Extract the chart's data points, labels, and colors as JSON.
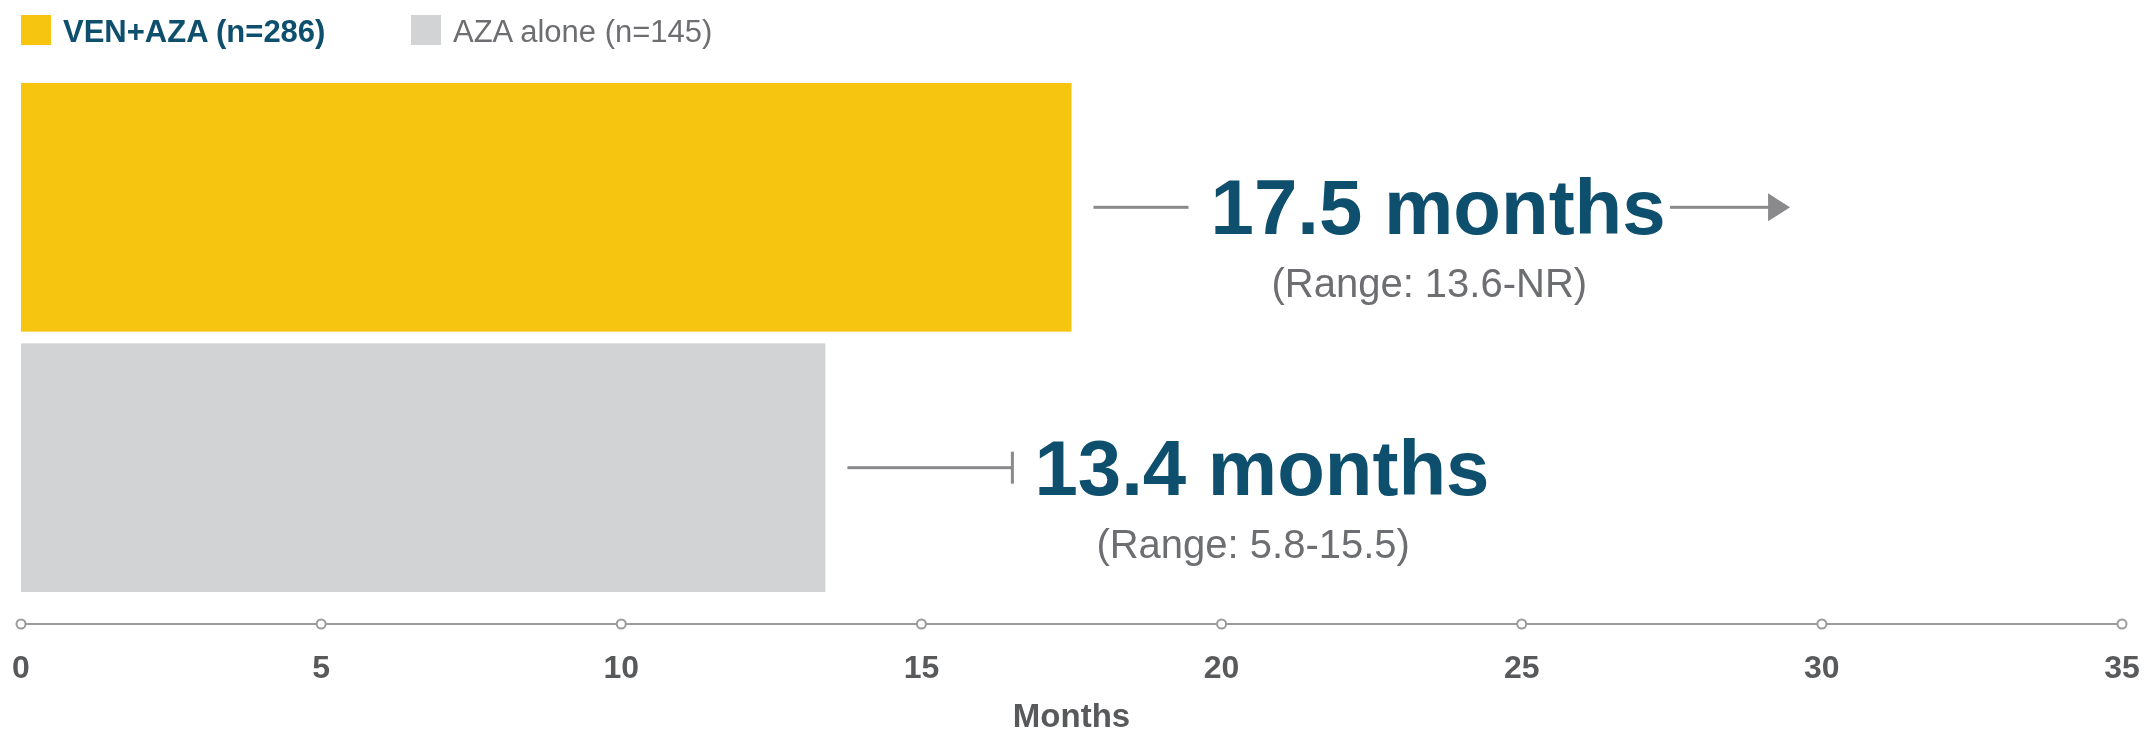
{
  "chart_data": {
    "type": "bar",
    "orientation": "horizontal",
    "categories": [
      null,
      null
    ],
    "series": [
      {
        "name": "VEN+AZA (n=286)",
        "color": "#f6c510",
        "values": [
          17.5,
          null
        ],
        "value_labels": [
          "17.5 months",
          null
        ]
      },
      {
        "name": "AZA alone (n=145)",
        "color": "#d1d3d4",
        "values": [
          null,
          13.4
        ],
        "value_labels": [
          null,
          "13.4 months"
        ]
      }
    ],
    "annotations": [
      "(Range: 13.6-NR)",
      "(Range: 5.8-15.5)"
    ],
    "xlabel": "Months",
    "xlim": [
      0,
      35
    ],
    "xticks": [
      0,
      5,
      10,
      15,
      20,
      25,
      30,
      35
    ],
    "legend": "top left",
    "stacked": true
  }
}
